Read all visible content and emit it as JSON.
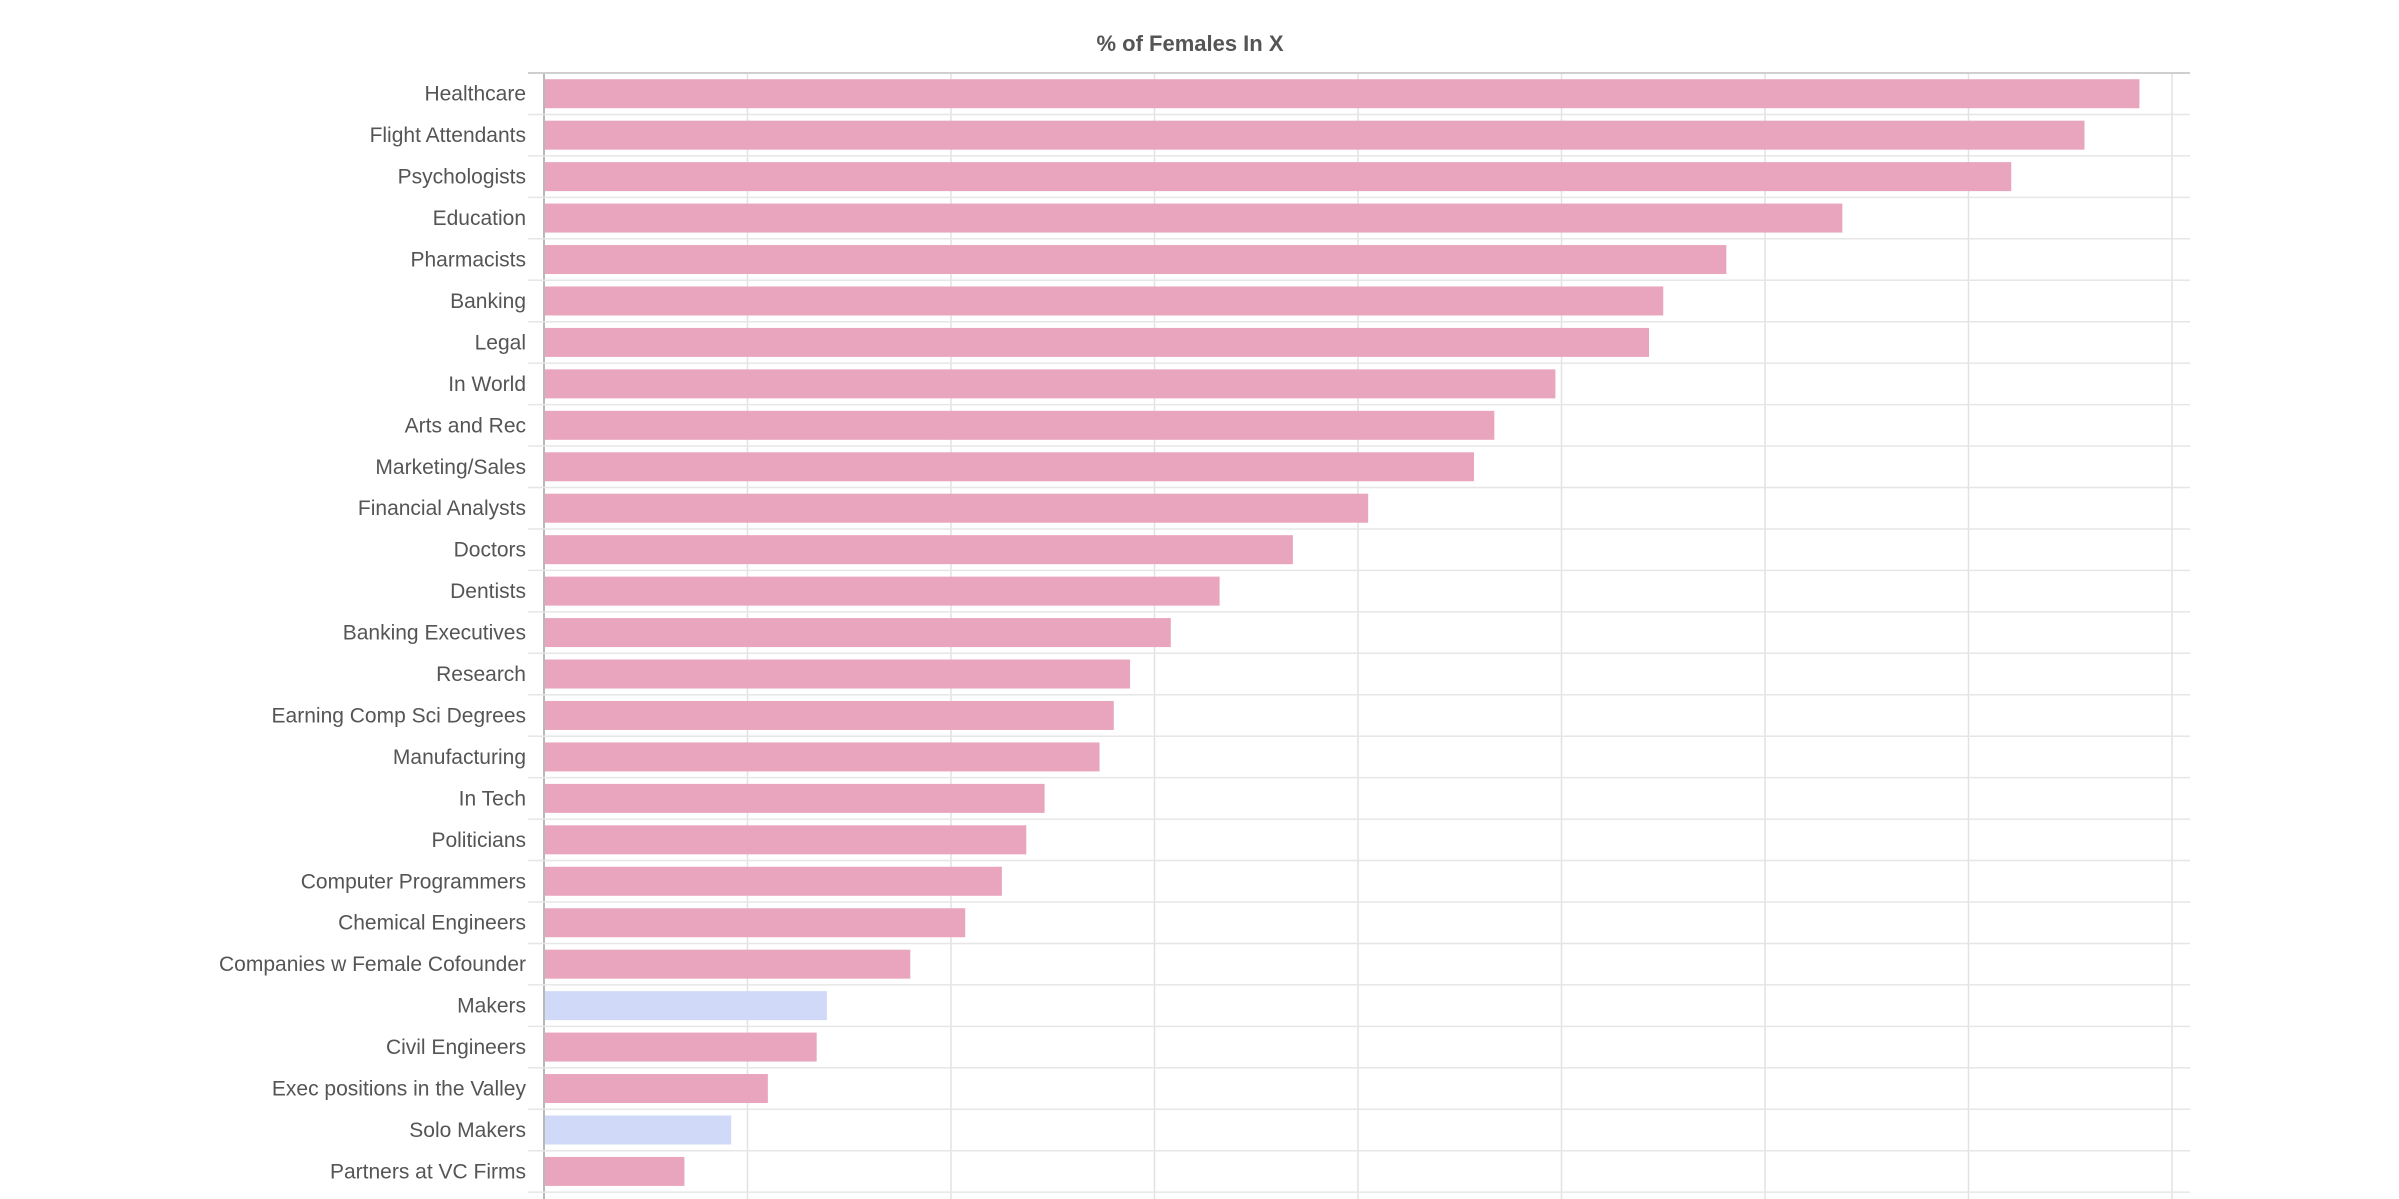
{
  "chart_data": {
    "type": "bar",
    "orientation": "horizontal",
    "title": "% of Females In X",
    "xlabel": "",
    "ylabel": "",
    "xlim": [
      0,
      81
    ],
    "grid": true,
    "legend": "none",
    "categories": [
      "Healthcare",
      "Flight Attendants",
      "Psychologists",
      "Education",
      "Pharmacists",
      "Banking",
      "Legal",
      "In World",
      "Arts and Rec",
      "Marketing/Sales",
      "Financial Analysts",
      "Doctors",
      "Dentists",
      "Banking Executives",
      "Research",
      "Earning Comp Sci Degrees",
      "Manufacturing",
      "In Tech",
      "Politicians",
      "Computer Programmers",
      "Chemical Engineers",
      "Companies w Female Cofounder",
      "Makers",
      "Civil Engineers",
      "Exec positions in the Valley",
      "Solo Makers",
      "Partners at VC Firms"
    ],
    "values": [
      78.4,
      75.7,
      72.1,
      63.8,
      58.1,
      55.0,
      54.3,
      49.7,
      46.7,
      45.7,
      40.5,
      36.8,
      33.2,
      30.8,
      28.8,
      28.0,
      27.3,
      24.6,
      23.7,
      22.5,
      20.7,
      18.0,
      13.9,
      13.4,
      11.0,
      9.2,
      6.9
    ],
    "colors": [
      "#eaa5be",
      "#eaa5be",
      "#eaa5be",
      "#eaa5be",
      "#eaa5be",
      "#eaa5be",
      "#eaa5be",
      "#eaa5be",
      "#eaa5be",
      "#eaa5be",
      "#eaa5be",
      "#eaa5be",
      "#eaa5be",
      "#eaa5be",
      "#eaa5be",
      "#eaa5be",
      "#eaa5be",
      "#eaa5be",
      "#eaa5be",
      "#eaa5be",
      "#eaa5be",
      "#eaa5be",
      "#d0daf8",
      "#eaa5be",
      "#eaa5be",
      "#d0daf8",
      "#eaa5be"
    ]
  }
}
